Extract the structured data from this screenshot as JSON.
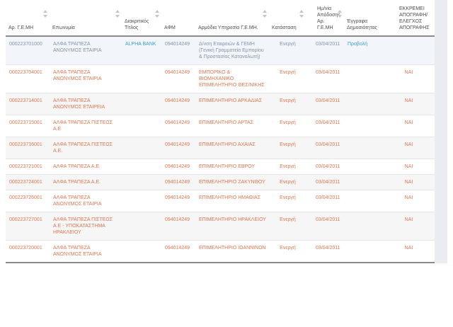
{
  "colors": {
    "header_text": "#4d4d4d",
    "row_text": "#e0764e",
    "highlighted_row_text": "#8593a3",
    "link": "#3f9fc9",
    "highlight_row_bg": "#f2f5f9",
    "stripe_row_bg": "#f6f6f6",
    "dark_rule": "#8b8b8b"
  },
  "table": {
    "columns": [
      {
        "label": "Αρ. Γ.Ε.ΜΗ",
        "sortable": true
      },
      {
        "label": "Επωνυμία",
        "sortable": true
      },
      {
        "label": "Διακριτικός Τίτλος",
        "sortable": true
      },
      {
        "label": "ΑΦΜ",
        "sortable": false
      },
      {
        "label": "Αρμόδια Υπηρεσία Γ.Ε.ΜΗ.",
        "sortable": true
      },
      {
        "label": "Κατάσταση",
        "sortable": true
      },
      {
        "label": "Ημ/νία Απόδοσης Αρ. Γ.Ε.ΜΗ",
        "sortable": true
      },
      {
        "label": "Έγγραφα Δημοσιότητας",
        "sortable": false
      },
      {
        "label": "ΕΚΚΡΕΜΕΙ ΑΠΟΓΡΑΦΗ/ΕΛΕΓΧΟΣ ΑΠΟΓΡΑΦΗΣ",
        "sortable": false
      }
    ],
    "rows": [
      {
        "gemi_number": "000223701000",
        "company_name": "ΑΛΦΑ ΤΡΑΠΕΖΑ ΑΝΩΝΥΜΟΣ ΕΤΑΙΡΙΑ",
        "distinctive_title": "ALPHA BANK",
        "afm": "094014249",
        "service": "Δ/νση Εταιρειών & ΓΕΜΗ (Γενική Γραμματεία Εμπορίου & Προστασίας Καταναλωτή)",
        "status": "Ενεργή",
        "date": "03/04/2011",
        "documents": "Προβολή",
        "pending": "",
        "highlighted": true
      },
      {
        "gemi_number": "000223704001",
        "company_name": "ΑΛΦΑ ΤΡΑΠΕΖΑ ΑΝΩΝΥΜΟΣ ΕΤΑΙΡΙΑ",
        "distinctive_title": "",
        "afm": "094014249",
        "service": "ΕΜΠΟΡΙΚΟ & ΒΙΟΜΗΧΑΝΙΚΟ ΕΠΙΜΕΛΗΤΗΡΙΟ ΘΕΣ/ΝΙΚΗΣ",
        "status": "Ενεργή",
        "date": "03/04/2011",
        "documents": "",
        "pending": "ΝΑΙ",
        "highlighted": false
      },
      {
        "gemi_number": "000223714001",
        "company_name": "ΑΛΦΑ ΤΡΑΠΕΖΑ ΑΝΩΝΥΜΟΣ ΕΤΑΙΡΕΙΑ",
        "distinctive_title": "",
        "afm": "094014249",
        "service": "ΕΠΙΜΕΛΗΤΗΡΙΟ ΑΡΚΑΔΙΑΣ",
        "status": "Ενεργή",
        "date": "03/04/2011",
        "documents": "",
        "pending": "ΝΑΙ",
        "highlighted": false
      },
      {
        "gemi_number": "000223715001",
        "company_name": "ΑΛΦΑ ΤΡΑΠΕΖΑ ΠΙΣΤΕΩΣ Α.Ε",
        "distinctive_title": "",
        "afm": "094014249",
        "service": "ΕΠΙΜΕΛΗΤΗΡΙΟ ΑΡΤΑΣ",
        "status": "Ενεργή",
        "date": "03/04/2011",
        "documents": "",
        "pending": "ΝΑΙ",
        "highlighted": false
      },
      {
        "gemi_number": "000223716001",
        "company_name": "ΑΛΦΑ ΤΡΑΠΕΖΑ ΠΙΣΤΕΩΣ Α.Ε.",
        "distinctive_title": "",
        "afm": "094014249",
        "service": "ΕΠΙΜΕΛΗΤΗΡΙΟ ΑΧΑΙΑΣ",
        "status": "Ενεργή",
        "date": "03/04/2011",
        "documents": "",
        "pending": "ΝΑΙ",
        "highlighted": false
      },
      {
        "gemi_number": "000223721001",
        "company_name": "ΑΛΦΑ ΤΡΑΠΕΖΑ Α.Ε.",
        "distinctive_title": "",
        "afm": "094014249",
        "service": "ΕΠΙΜΕΛΗΤΗΡΙΟ ΕΒΡΟΥ",
        "status": "Ενεργή",
        "date": "03/04/2011",
        "documents": "",
        "pending": "ΝΑΙ",
        "highlighted": false
      },
      {
        "gemi_number": "000223724001",
        "company_name": "ΑΛΦΑ ΤΡΑΠΕΖΑ Α.Ε.",
        "distinctive_title": "",
        "afm": "094014249",
        "service": "ΕΠΙΜΕΛΗΤΗΡΙΟ ΖΑΚΥΝΘΟΥ",
        "status": "Ενεργή",
        "date": "03/04/2011",
        "documents": "",
        "pending": "ΝΑΙ",
        "highlighted": false
      },
      {
        "gemi_number": "000223726001",
        "company_name": "ΑΛΦΑ ΤΡΑΠΕΖΑ ΑΝΩΝΥΜΟΣ ΕΤΑΙΡΙΑ",
        "distinctive_title": "",
        "afm": "094014249",
        "service": "ΕΠΙΜΕΛΗΤΗΡΙΟ ΗΜΑΘΙΑΣ",
        "status": "Ενεργή",
        "date": "03/04/2011",
        "documents": "",
        "pending": "ΝΑΙ",
        "highlighted": false
      },
      {
        "gemi_number": "000223727001",
        "company_name": "ΑΛΦΑ ΤΡΑΠΕΖΑ ΠΙΣΤΕΩΣ Α.Ε - ΥΠΟΚΑΤΑΣΤΗΜΑ ΗΡΑΚΛΕΙΟΥ",
        "distinctive_title": "",
        "afm": "094014249",
        "service": "ΕΠΙΜΕΛΗΤΗΡΙΟ ΗΡΑΚΛΕΙΟΥ",
        "status": "Ενεργή",
        "date": "03/04/2011",
        "documents": "",
        "pending": "ΝΑΙ",
        "highlighted": false
      },
      {
        "gemi_number": "000223720001",
        "company_name": "ΑΛΦΑ ΤΡΑΠΕΖΑ ΑΝΩΝΥΜΟΣ ΕΤΑΙΡΙΑ",
        "distinctive_title": "",
        "afm": "094014249",
        "service": "ΕΠΙΜΕΛΗΤΗΡΙΟ ΙΩΑΝΝΙΝΩΝ",
        "status": "Ενεργή",
        "date": "03/04/2011",
        "documents": "",
        "pending": "ΝΑΙ",
        "highlighted": false
      }
    ]
  }
}
